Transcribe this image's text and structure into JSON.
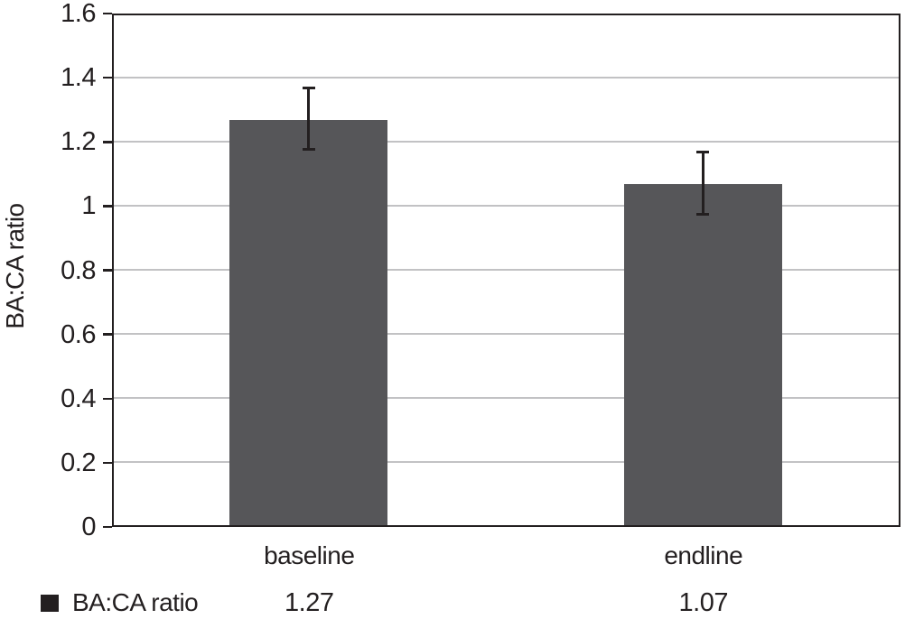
{
  "chart_data": {
    "type": "bar",
    "title": "",
    "categories": [
      "baseline",
      "endline"
    ],
    "series": [
      {
        "name": "BA:CA ratio",
        "values": [
          1.27,
          1.07
        ],
        "error": [
          0.1,
          0.1
        ]
      }
    ],
    "xlabel": "",
    "ylabel": "BA:CA ratio",
    "ylim": [
      0,
      1.6
    ],
    "ytick_step": 0.2,
    "yticks": [
      {
        "value": 1.6,
        "label": "1.6"
      },
      {
        "value": 1.4,
        "label": "1.4"
      },
      {
        "value": 1.2,
        "label": "1.2"
      },
      {
        "value": 1.0,
        "label": "1"
      },
      {
        "value": 0.8,
        "label": "0.8"
      },
      {
        "value": 0.6,
        "label": "0.6"
      },
      {
        "value": 0.4,
        "label": "0.4"
      },
      {
        "value": 0.2,
        "label": "0.2"
      },
      {
        "value": 0.0,
        "label": "0"
      }
    ],
    "grid": true,
    "legend_position": "bottom",
    "data_table": {
      "row_label": "BA:CA ratio",
      "values": [
        "1.27",
        "1.07"
      ]
    }
  },
  "colors": {
    "bar_fill": "#565659",
    "axis_line": "#231f20",
    "gridline": "#c2c2c4",
    "text": "#231f20",
    "error_bar": "#231f20",
    "legend_marker": "#231f20",
    "background": "#ffffff"
  }
}
